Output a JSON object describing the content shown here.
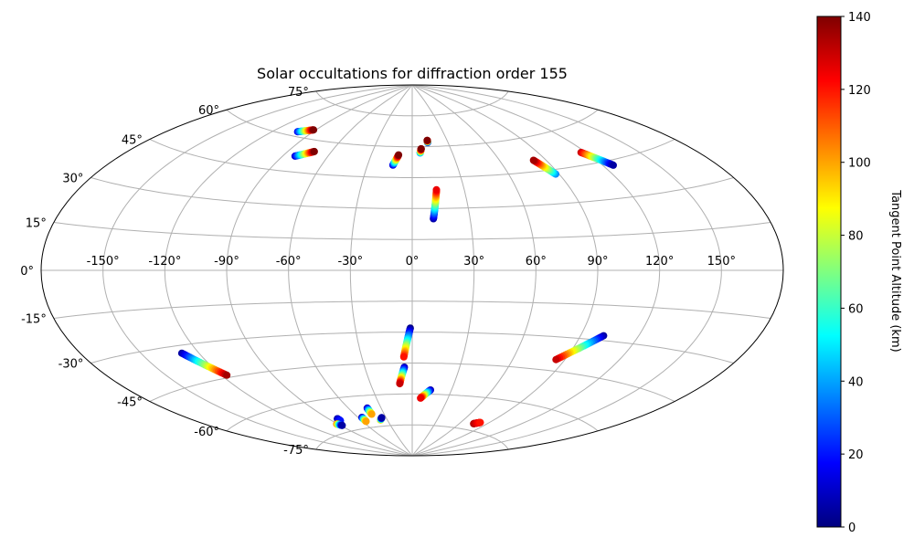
{
  "chart_data": {
    "type": "scatter",
    "projection": "aitoff",
    "title": "Solar occultations for diffraction order 155",
    "grid": true,
    "lon_ticks": [
      "-150°",
      "-120°",
      "-90°",
      "-60°",
      "-30°",
      "0°",
      "30°",
      "60°",
      "90°",
      "120°",
      "150°"
    ],
    "lon_tick_values": [
      -150,
      -120,
      -90,
      -60,
      -30,
      0,
      30,
      60,
      90,
      120,
      150
    ],
    "lat_ticks": [
      "75°",
      "60°",
      "45°",
      "30°",
      "15°",
      "0°",
      "-15°",
      "-30°",
      "-45°",
      "-60°",
      "-75°"
    ],
    "lat_tick_values": [
      75,
      60,
      45,
      30,
      15,
      0,
      -15,
      -30,
      -45,
      -60,
      -75
    ],
    "colorbar": {
      "label": "Tangent Point Altitude (km)",
      "colormap": "jet",
      "range": [
        0,
        140
      ],
      "ticks": [
        "0",
        "20",
        "40",
        "60",
        "80",
        "100",
        "120",
        "140"
      ],
      "tick_values": [
        0,
        20,
        40,
        60,
        80,
        100,
        120,
        140
      ]
    },
    "series": [
      {
        "lon_start": -102,
        "lat_start": 62,
        "alt_start": 15,
        "lon_end": -92,
        "lat_end": 64,
        "alt_end": 140
      },
      {
        "lon_start": -82,
        "lat_start": 52,
        "alt_start": 10,
        "lon_end": -72,
        "lat_end": 55,
        "alt_end": 140
      },
      {
        "lon_start": -13,
        "lat_start": 51,
        "alt_start": 10,
        "lon_end": -10,
        "lat_end": 56,
        "alt_end": 140
      },
      {
        "lon_start": 6,
        "lat_start": 57,
        "alt_start": 35,
        "lon_end": 7,
        "lat_end": 59,
        "alt_end": 140
      },
      {
        "lon_start": 13,
        "lat_start": 62,
        "alt_start": 5,
        "lon_end": 13,
        "lat_end": 63,
        "alt_end": 140
      },
      {
        "lon_start": 11,
        "lat_start": 25,
        "alt_start": 5,
        "lon_end": 14,
        "lat_end": 39,
        "alt_end": 125
      },
      {
        "lon_start": 88,
        "lat_start": 43,
        "alt_start": 35,
        "lon_end": 82,
        "lat_end": 50,
        "alt_end": 135
      },
      {
        "lon_start": 117,
        "lat_start": 50,
        "alt_start": 130,
        "lon_end": 126,
        "lat_end": 43,
        "alt_end": 5
      },
      {
        "lon_start": -129,
        "lat_start": -33,
        "alt_start": 5,
        "lon_end": -117,
        "lat_end": -44,
        "alt_end": 135
      },
      {
        "lon_start": -1,
        "lat_start": -28,
        "alt_start": 0,
        "lon_end": -5,
        "lat_end": -42,
        "alt_end": 120
      },
      {
        "lon_start": -5,
        "lat_start": -47,
        "alt_start": 5,
        "lon_end": -9,
        "lat_end": -55,
        "alt_end": 130
      },
      {
        "lon_start": 102,
        "lat_start": -28,
        "alt_start": 5,
        "lon_end": 85,
        "lat_end": -40,
        "alt_end": 130
      },
      {
        "lon_start": 14,
        "lat_start": -58,
        "alt_start": 5,
        "lon_end": 7,
        "lat_end": -62,
        "alt_end": 125
      },
      {
        "lon_start": -82,
        "lat_start": -69,
        "alt_start": 5,
        "lon_end": -82,
        "lat_end": -70,
        "alt_end": 20
      },
      {
        "lon_start": -91,
        "lat_start": -71,
        "alt_start": 110,
        "lon_end": -88,
        "lat_end": -72,
        "alt_end": 5
      },
      {
        "lon_start": -56,
        "lat_start": -70,
        "alt_start": 5,
        "lon_end": -56,
        "lat_end": -72,
        "alt_end": 100
      },
      {
        "lon_start": -43,
        "lat_start": -66,
        "alt_start": 5,
        "lon_end": -43,
        "lat_end": -69,
        "alt_end": 100
      },
      {
        "lon_start": -38,
        "lat_start": -72,
        "alt_start": 100,
        "lon_end": -35,
        "lat_end": -71,
        "alt_end": 5
      },
      {
        "lon_start": 76,
        "lat_start": -72,
        "alt_start": 135,
        "lon_end": 81,
        "lat_end": -71,
        "alt_end": 120
      }
    ]
  }
}
